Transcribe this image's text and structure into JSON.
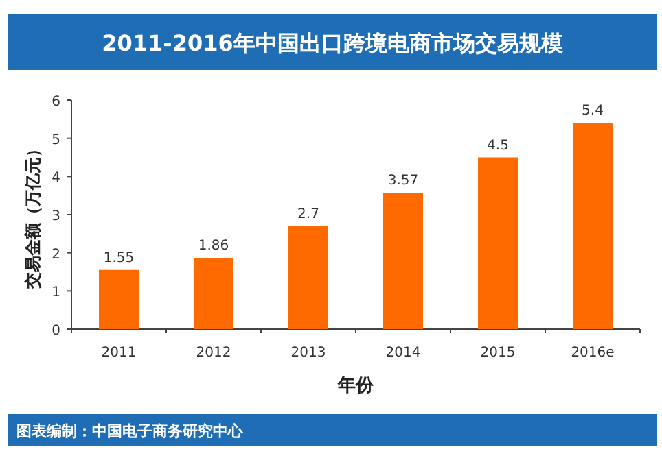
{
  "chart_data": {
    "type": "bar",
    "title": "2011-2016年中国出口跨境电商市场交易规模",
    "xlabel": "年份",
    "ylabel": "交易金额（万亿元）",
    "categories": [
      "2011",
      "2012",
      "2013",
      "2014",
      "2015",
      "2016e"
    ],
    "values": [
      1.55,
      1.86,
      2.7,
      3.57,
      4.5,
      5.4
    ],
    "color": "#ff6a00",
    "ylim": [
      0,
      6
    ],
    "yticks": [
      0,
      1,
      2,
      3,
      4,
      5,
      6
    ],
    "grid": false,
    "data_labels": true,
    "annotations": [
      "图表编制：中国电子商务研究中心"
    ]
  }
}
